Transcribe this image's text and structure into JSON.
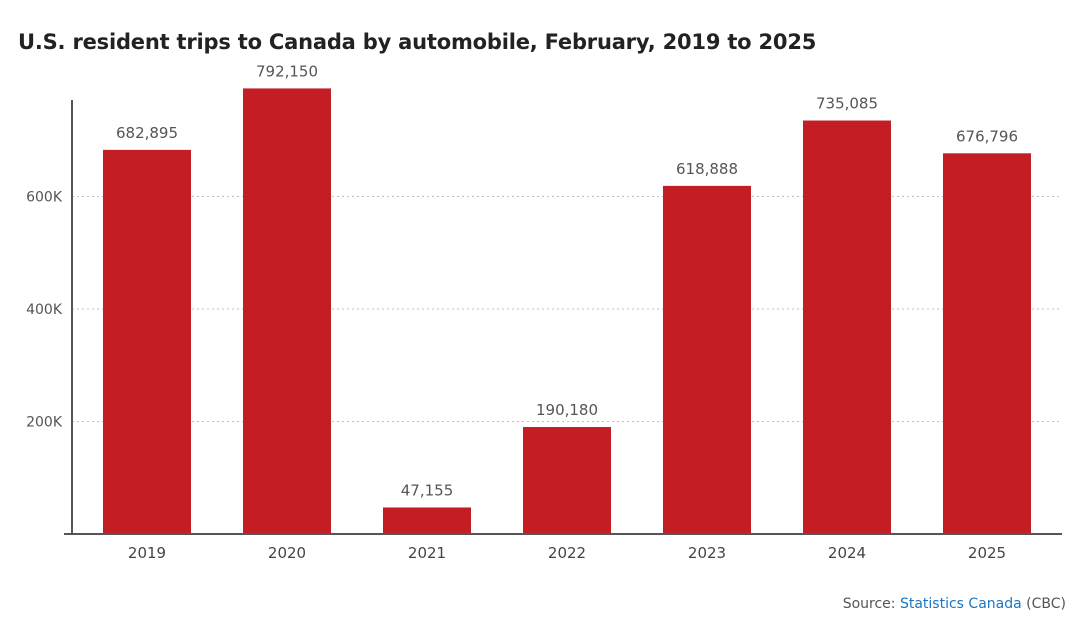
{
  "chart_data": {
    "type": "bar",
    "title": "U.S. resident trips to Canada by automobile, February, 2019 to 2025",
    "categories": [
      "2019",
      "2020",
      "2021",
      "2022",
      "2023",
      "2024",
      "2025"
    ],
    "values": [
      682895,
      792150,
      47155,
      190180,
      618888,
      735085,
      676796
    ],
    "value_labels": [
      "682,895",
      "792,150",
      "47,155",
      "190,180",
      "618,888",
      "735,085",
      "676,796"
    ],
    "yticks": [
      200000,
      400000,
      600000
    ],
    "ytick_labels": [
      "200K",
      "400K",
      "600K"
    ],
    "ylim": [
      0,
      800000
    ],
    "xlabel": "",
    "ylabel": "",
    "grid": "horizontal dotted",
    "bar_color": "#c41e25"
  },
  "source": {
    "prefix": "Source: ",
    "link_text": "Statistics Canada",
    "suffix": " (CBC)"
  }
}
